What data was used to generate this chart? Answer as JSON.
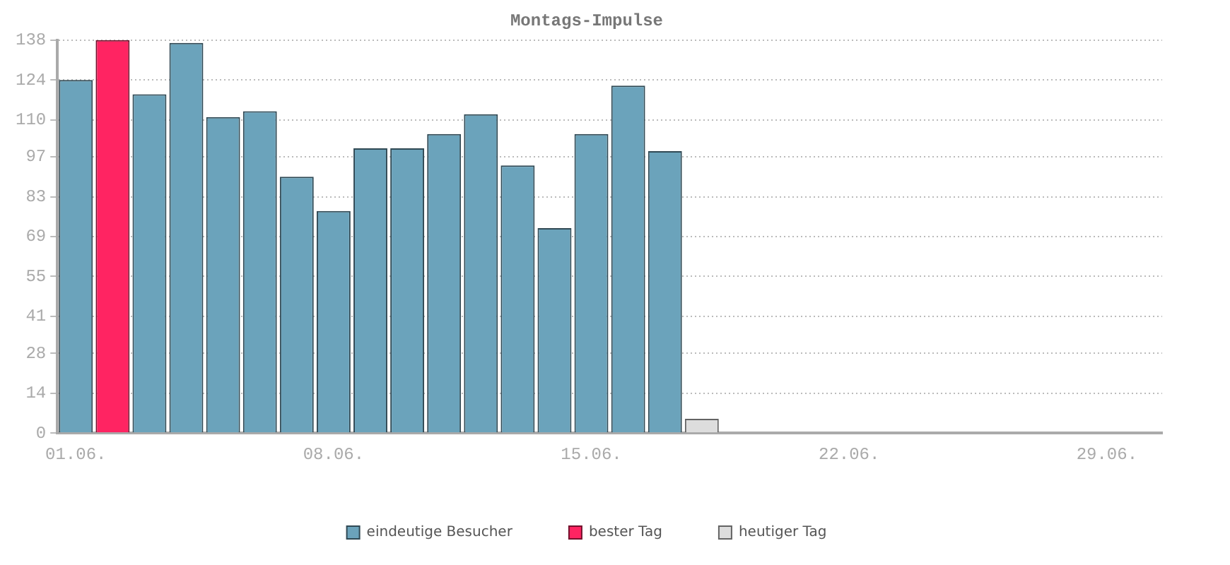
{
  "chart_data": {
    "type": "bar",
    "title": "Montags-Impulse",
    "categories": [
      "01.06.",
      null,
      null,
      null,
      null,
      null,
      null,
      "08.06.",
      null,
      null,
      null,
      null,
      null,
      null,
      "15.06.",
      null,
      null,
      null,
      null,
      null,
      null,
      "22.06.",
      null,
      null,
      null,
      null,
      null,
      null,
      "29.06.",
      null
    ],
    "series": [
      {
        "name": "eindeutige Besucher",
        "color": "#6ba3bb",
        "values": [
          124,
          null,
          119,
          137,
          111,
          113,
          90,
          78,
          100,
          100,
          105,
          112,
          94,
          72,
          105,
          122,
          99,
          null,
          null,
          null,
          null,
          null,
          null,
          null,
          null,
          null,
          null,
          null,
          null,
          null
        ]
      },
      {
        "name": "bester Tag",
        "color": "#ff2462",
        "values": [
          null,
          138,
          null,
          null,
          null,
          null,
          null,
          null,
          null,
          null,
          null,
          null,
          null,
          null,
          null,
          null,
          null,
          null,
          null,
          null,
          null,
          null,
          null,
          null,
          null,
          null,
          null,
          null,
          null,
          null
        ]
      },
      {
        "name": "heutiger Tag",
        "color": "#dddddd",
        "values": [
          null,
          null,
          null,
          null,
          null,
          null,
          null,
          null,
          null,
          null,
          null,
          null,
          null,
          null,
          null,
          null,
          null,
          5,
          null,
          null,
          null,
          null,
          null,
          null,
          null,
          null,
          null,
          null,
          null,
          null
        ]
      }
    ],
    "ylim": [
      0,
      138
    ],
    "yticks": [
      0,
      14,
      28,
      41,
      55,
      69,
      83,
      97,
      110,
      124,
      138
    ],
    "grid": "y",
    "legend": "bottom"
  }
}
